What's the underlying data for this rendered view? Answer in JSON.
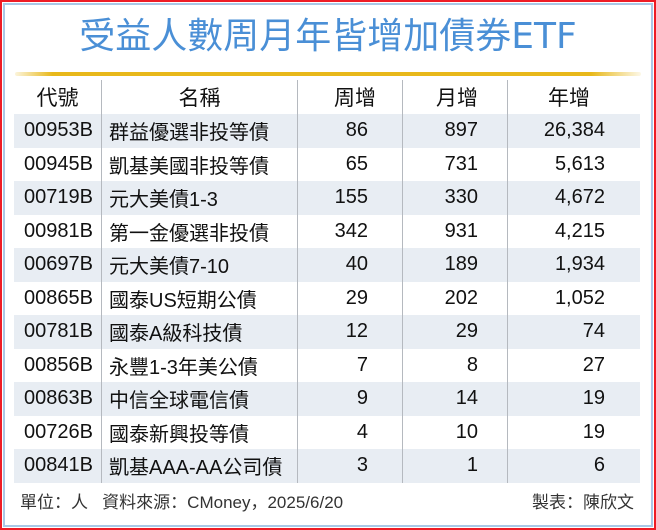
{
  "title": "受益人數周月年皆增加債券ETF",
  "colors": {
    "title": "#4a8fd6",
    "outer_border": "#ee1c25",
    "inner_border": "#a9c8e6",
    "accent_line": "#e8b81a",
    "row_shade": "#e8edf3"
  },
  "table": {
    "headers": {
      "code": "代號",
      "name": "名稱",
      "week": "周增",
      "month": "月增",
      "year": "年增"
    },
    "rows": [
      {
        "code": "00953B",
        "name": "群益優選非投等債",
        "week": "86",
        "month": "897",
        "year": "26,384"
      },
      {
        "code": "00945B",
        "name": "凱基美國非投等債",
        "week": "65",
        "month": "731",
        "year": "5,613"
      },
      {
        "code": "00719B",
        "name": "元大美債1-3",
        "week": "155",
        "month": "330",
        "year": "4,672"
      },
      {
        "code": "00981B",
        "name": "第一金優選非投債",
        "week": "342",
        "month": "931",
        "year": "4,215"
      },
      {
        "code": "00697B",
        "name": "元大美債7-10",
        "week": "40",
        "month": "189",
        "year": "1,934"
      },
      {
        "code": "00865B",
        "name": "國泰US短期公債",
        "week": "29",
        "month": "202",
        "year": "1,052"
      },
      {
        "code": "00781B",
        "name": "國泰A級科技債",
        "week": "12",
        "month": "29",
        "year": "74"
      },
      {
        "code": "00856B",
        "name": "永豐1-3年美公債",
        "week": "7",
        "month": "8",
        "year": "27"
      },
      {
        "code": "00863B",
        "name": "中信全球電信債",
        "week": "9",
        "month": "14",
        "year": "19"
      },
      {
        "code": "00726B",
        "name": "國泰新興投等債",
        "week": "4",
        "month": "10",
        "year": "19"
      },
      {
        "code": "00841B",
        "name": "凱基AAA-AA公司債",
        "week": "3",
        "month": "1",
        "year": "6"
      }
    ]
  },
  "footer": {
    "unit": "單位：人",
    "source": "資料來源：CMoney，2025/6/20",
    "credit": "製表：陳欣文"
  }
}
